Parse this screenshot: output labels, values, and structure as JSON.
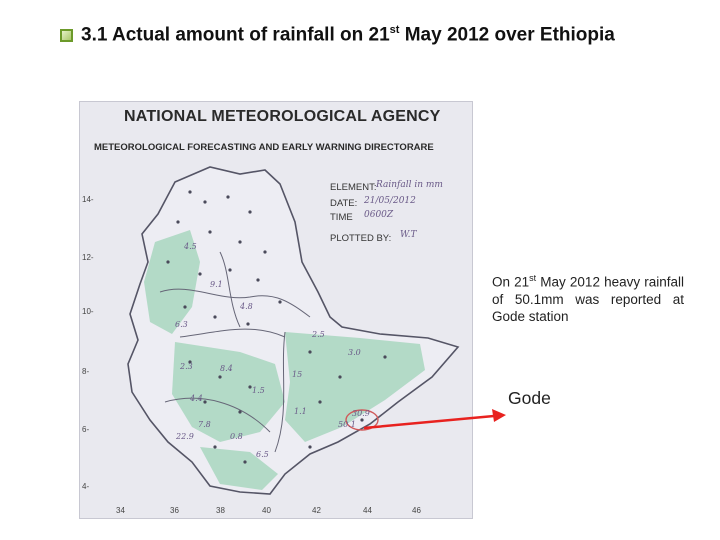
{
  "title": {
    "prefix": "3.1 Actual amount of rainfall on 21",
    "suffix_sup": "st",
    "rest": " May 2012 over Ethiopia"
  },
  "map": {
    "agency": "NATIONAL METEOROLOGICAL AGENCY",
    "directorate": "METEOROLOGICAL FORECASTING AND EARLY WARNING DIRECTORARE",
    "fields": {
      "element_label": "ELEMENT:",
      "element_value": "Rainfall in mm",
      "date_label": "DATE:",
      "date_value": "21/05/2012",
      "time_label": "TIME",
      "time_value": "0600Z",
      "plotted_label": "PLOTTED BY:",
      "plotted_value": "W.T"
    },
    "lat_ticks": [
      "14",
      "12",
      "10",
      "8",
      "6",
      "4"
    ],
    "lon_ticks": [
      "34",
      "36",
      "38",
      "40",
      "42",
      "44",
      "46"
    ],
    "station_readings": [
      {
        "label": "4.5"
      },
      {
        "label": "9.1"
      },
      {
        "label": "6.3"
      },
      {
        "label": "4.8"
      },
      {
        "label": "2.5"
      },
      {
        "label": "2.3"
      },
      {
        "label": "4.4"
      },
      {
        "label": "8.4"
      },
      {
        "label": "1.5"
      },
      {
        "label": "3.0"
      },
      {
        "label": "30.9"
      },
      {
        "label": "50.1"
      },
      {
        "label": "15"
      },
      {
        "label": "0.8"
      },
      {
        "label": "7.8"
      },
      {
        "label": "6.5"
      },
      {
        "label": "1.1"
      },
      {
        "label": "22.9"
      }
    ],
    "colors": {
      "rain_fill": "#9fd3b8",
      "boundary": "#555566",
      "highlight": "#d05a5a"
    }
  },
  "note": {
    "line_a": "On 21",
    "sup": "st",
    "line_b": " May 2012 heavy rainfall of 50.1mm was reported at Gode station"
  },
  "callout": {
    "label": "Gode",
    "arrow_color": "#e8221f"
  }
}
